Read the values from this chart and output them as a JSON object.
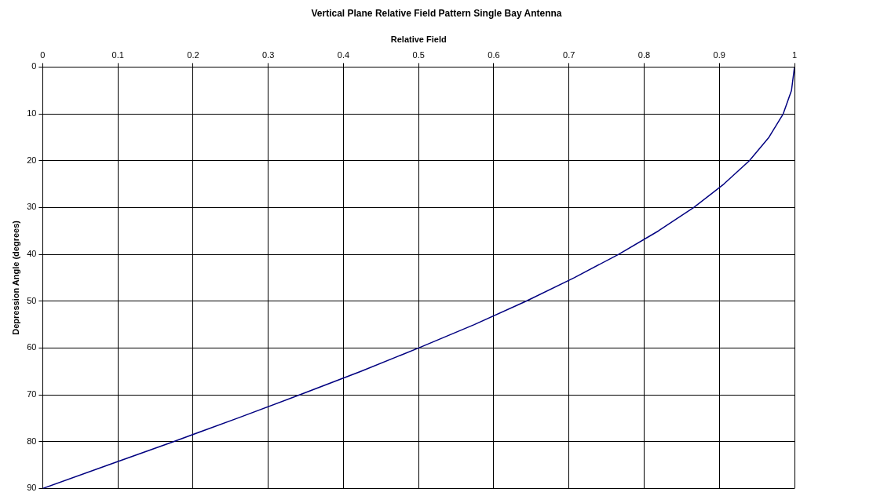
{
  "chart_data": {
    "type": "line",
    "title": "Vertical Plane Relative Field Pattern Single Bay Antenna",
    "xlabel": "Relative Field",
    "ylabel": "Depression Angle (degrees)",
    "x": [
      1,
      0.996,
      0.985,
      0.966,
      0.94,
      0.906,
      0.866,
      0.819,
      0.766,
      0.707,
      0.643,
      0.574,
      0.5,
      0.423,
      0.342,
      0.259,
      0.174,
      0.087,
      0
    ],
    "series": [
      {
        "color": "#000080",
        "values": [
          0,
          5,
          10,
          15,
          20,
          25,
          30,
          35,
          40,
          45,
          50,
          55,
          60,
          65,
          70,
          75,
          80,
          85,
          90
        ]
      }
    ],
    "xlim": [
      0,
      1
    ],
    "xticks": [
      0,
      0.1,
      0.2,
      0.3,
      0.4,
      0.5,
      0.6,
      0.7,
      0.8,
      0.9,
      1
    ],
    "ylim": [
      90,
      0
    ],
    "yticks": [
      0,
      10,
      20,
      30,
      40,
      50,
      60,
      70,
      80,
      90
    ],
    "grid": true,
    "legend": false,
    "marker": "none",
    "line_style": "solid"
  }
}
